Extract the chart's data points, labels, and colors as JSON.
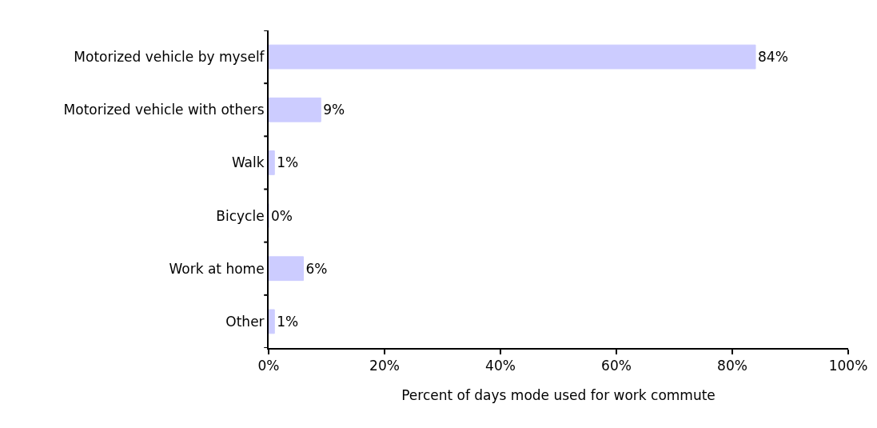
{
  "chart_data": {
    "type": "bar",
    "orientation": "horizontal",
    "categories": [
      "Motorized vehicle by myself",
      "Motorized vehicle with others",
      "Walk",
      "Bicycle",
      "Work at home",
      "Other"
    ],
    "values": [
      84,
      9,
      1,
      0,
      6,
      1
    ],
    "value_labels": [
      "84%",
      "9%",
      "1%",
      "0%",
      "6%",
      "1%"
    ],
    "color": "#ccccff",
    "xlabel": "Percent of days mode used for work commute",
    "xlim": [
      0,
      100
    ],
    "xticks": [
      {
        "value": 0,
        "label": "0%"
      },
      {
        "value": 20,
        "label": "20%"
      },
      {
        "value": 40,
        "label": "40%"
      },
      {
        "value": 60,
        "label": "60%"
      },
      {
        "value": 80,
        "label": "80%"
      },
      {
        "value": 100,
        "label": "100%"
      }
    ]
  }
}
